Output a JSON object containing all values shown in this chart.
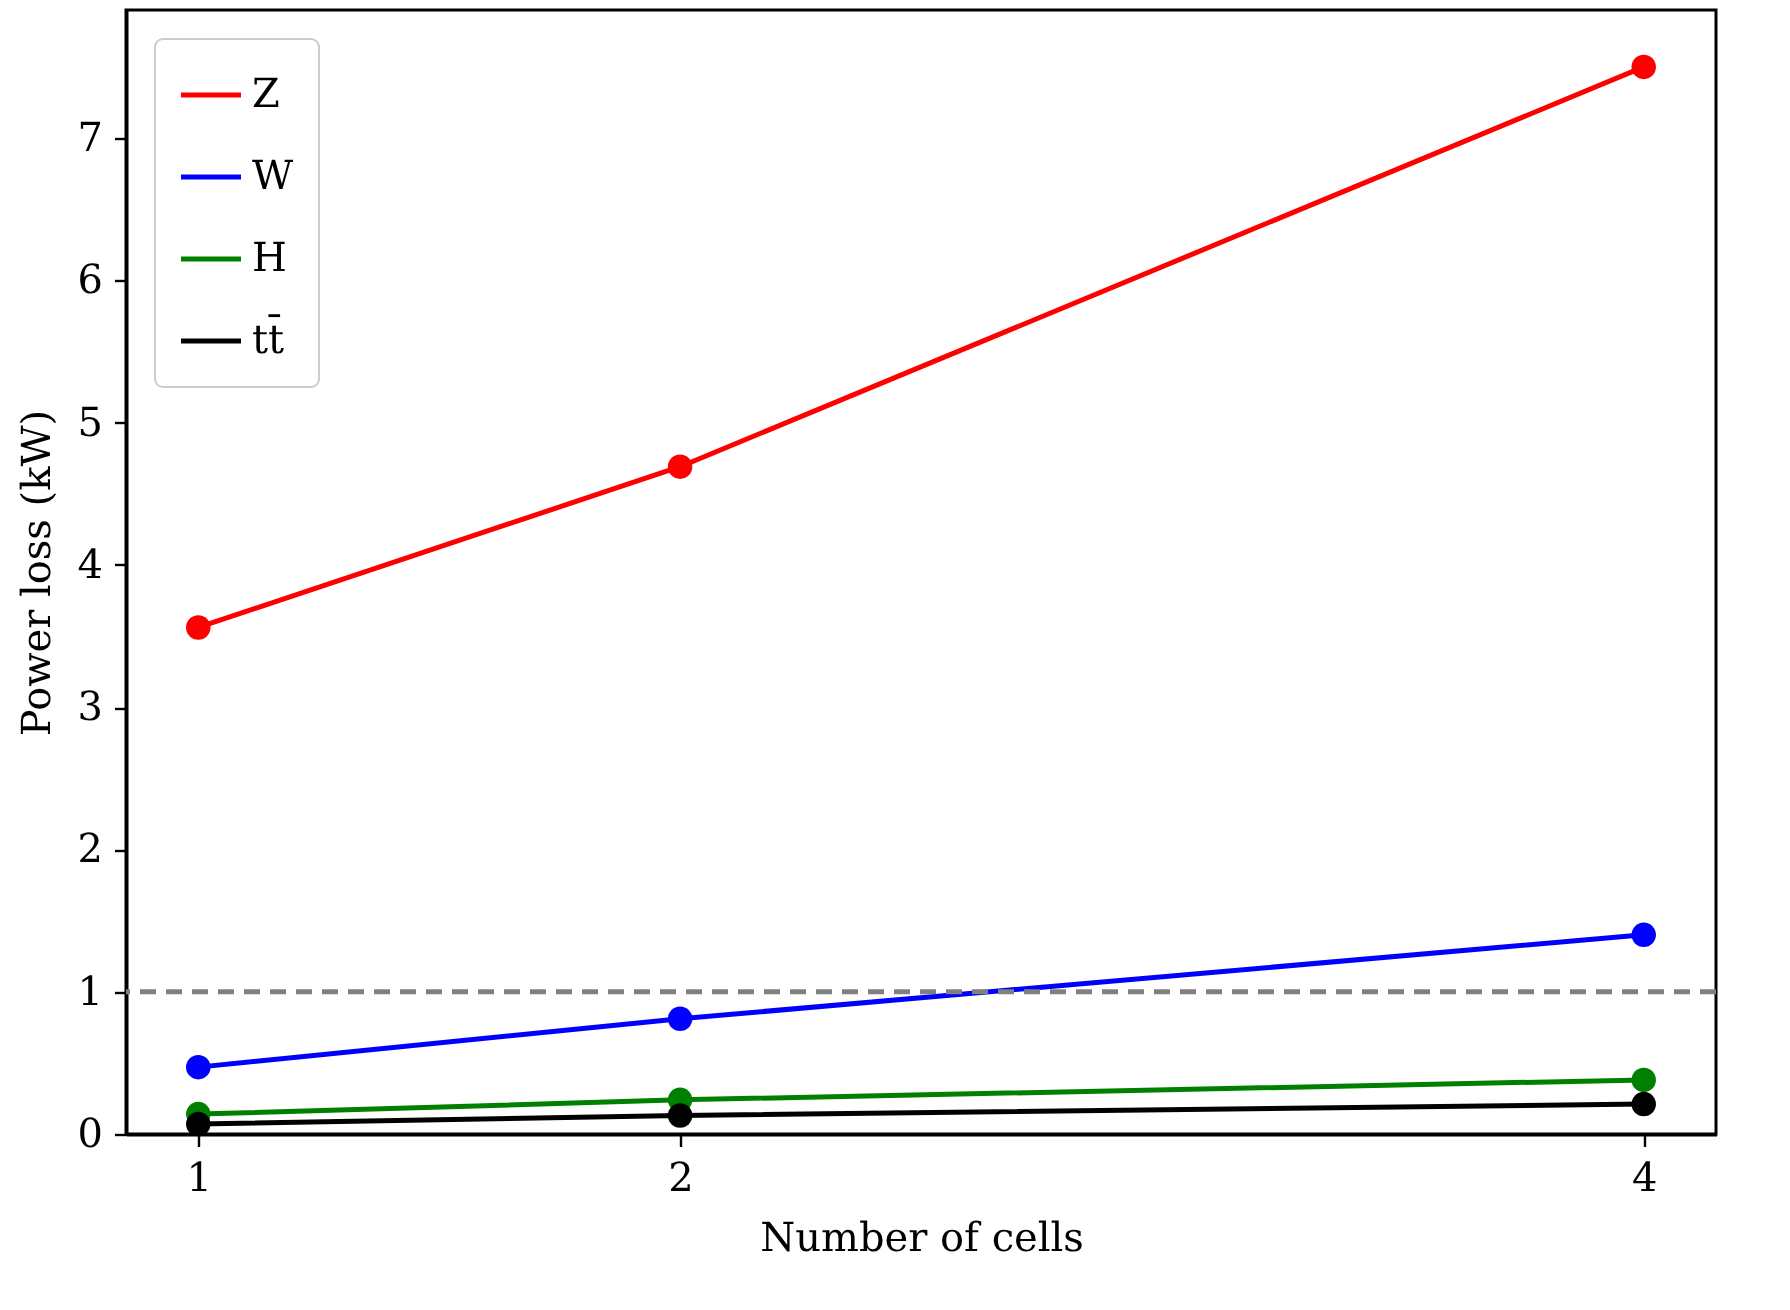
{
  "chart_data": {
    "type": "line",
    "xlabel": "Number of cells",
    "ylabel": "Power loss (kW)",
    "x": [
      1,
      2,
      4
    ],
    "series": [
      {
        "name": "Z",
        "color": "#ff0000",
        "values": [
          3.56,
          4.69,
          7.5
        ]
      },
      {
        "name": "W",
        "color": "#0000ff",
        "values": [
          0.47,
          0.81,
          1.4
        ]
      },
      {
        "name": "H",
        "color": "#008000",
        "values": [
          0.14,
          0.24,
          0.38
        ]
      },
      {
        "name": "tt̄",
        "color": "#000000",
        "values": [
          0.07,
          0.13,
          0.21
        ]
      }
    ],
    "xlim": [
      0.85,
      4.15
    ],
    "xticks": [
      1,
      2,
      4
    ],
    "ylim": [
      0,
      7.9
    ],
    "yticks": [
      0,
      1,
      2,
      3,
      4,
      5,
      6,
      7
    ],
    "ref_lines": [
      {
        "axis": "y",
        "value": 1,
        "color": "#808080",
        "line_style": "dashed"
      }
    ],
    "marker": "circle",
    "line_style": "solid",
    "grid": false,
    "legend": "top left"
  }
}
